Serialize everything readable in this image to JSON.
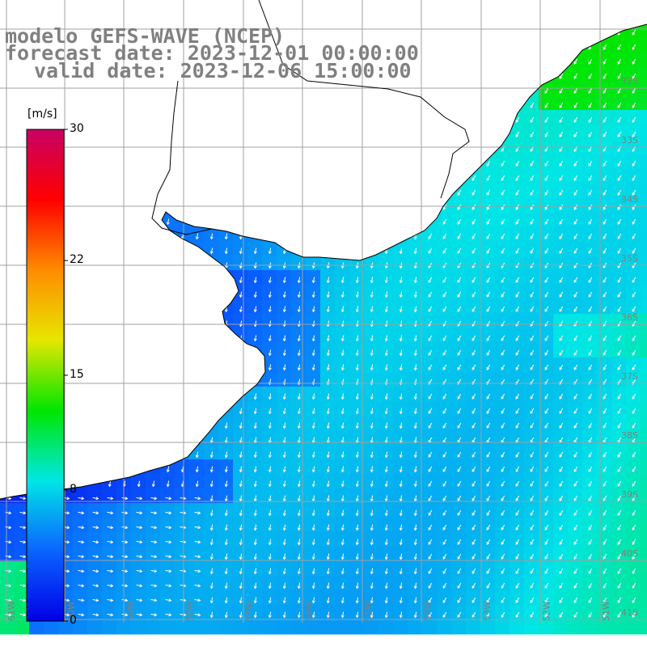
{
  "title": {
    "model": "modelo GEFS-WAVE (NCEP)",
    "forecast": "forecast date: 2023-12-01 00:00:00",
    "valid": "valid date: 2023-12-06 15:00:00"
  },
  "colorbar": {
    "unit": "[m/s]",
    "ticks": [
      {
        "label": "30",
        "value": 30
      },
      {
        "label": "22",
        "value": 22
      },
      {
        "label": "15",
        "value": 15
      },
      {
        "label": "8",
        "value": 8
      },
      {
        "label": "0",
        "value": 0
      }
    ],
    "range": [
      0,
      30
    ],
    "stops": [
      "#0000e6",
      "#0a64ff",
      "#00e6e6",
      "#00e600",
      "#e6e600",
      "#ff8c00",
      "#ff0000",
      "#c80064"
    ]
  },
  "lat_labels": [
    {
      "label": "32S",
      "lat": -32
    },
    {
      "label": "33S",
      "lat": -33
    },
    {
      "label": "34S",
      "lat": -34
    },
    {
      "label": "35S",
      "lat": -35
    },
    {
      "label": "36S",
      "lat": -36
    },
    {
      "label": "37S",
      "lat": -37
    },
    {
      "label": "38S",
      "lat": -38
    },
    {
      "label": "39S",
      "lat": -39
    },
    {
      "label": "40S",
      "lat": -40
    },
    {
      "label": "41S",
      "lat": -41
    }
  ],
  "lon_labels": [
    {
      "label": "61W",
      "lon": -61
    },
    {
      "label": "60W",
      "lon": -60
    },
    {
      "label": "59W",
      "lon": -59
    },
    {
      "label": "58W",
      "lon": -58
    },
    {
      "label": "57W",
      "lon": -57
    },
    {
      "label": "56W",
      "lon": -56
    },
    {
      "label": "55W",
      "lon": -55
    },
    {
      "label": "54W",
      "lon": -54
    },
    {
      "label": "53W",
      "lon": -53
    },
    {
      "label": "52W",
      "lon": -52
    },
    {
      "label": "51W",
      "lon": -51
    }
  ],
  "colors": {
    "land": "#ffffff",
    "coast": "#000000",
    "grid": "#a0a0a0",
    "arrow": "#ffffff",
    "label": "#808080"
  }
}
